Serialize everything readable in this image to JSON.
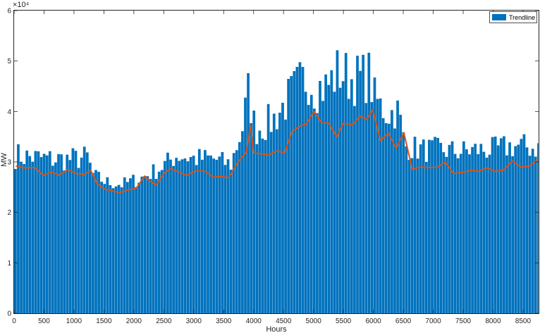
{
  "chart_data": {
    "type": "bar",
    "xlabel": "Hours",
    "ylabel": "MW",
    "exponent_label": "×10⁴",
    "xlim": [
      0,
      8760
    ],
    "ylim": [
      0,
      60000
    ],
    "xticks": [
      0,
      500,
      1000,
      1500,
      2000,
      2500,
      3000,
      3500,
      4000,
      4500,
      5000,
      5500,
      6000,
      6500,
      7000,
      7500,
      8000,
      8500
    ],
    "yticks": [
      0,
      10000,
      20000,
      30000,
      40000,
      50000,
      60000
    ],
    "ytick_labels": [
      "0",
      "1",
      "2",
      "3",
      "4",
      "5",
      "6"
    ],
    "grid": false,
    "legend_position": "top-right",
    "colors": {
      "bars": "#0072BD",
      "trend": "#D95319",
      "axes": "#262626"
    },
    "series": [
      {
        "name": "Trendline",
        "kind": "bar",
        "bin_hours": 48,
        "x_start": 0,
        "upper_envelope_x": [
          0,
          300,
          600,
          900,
          1200,
          1300,
          1500,
          1800,
          2100,
          2400,
          2700,
          3000,
          3300,
          3600,
          3800,
          3900,
          4000,
          4300,
          4500,
          4700,
          4900,
          5000,
          5200,
          5400,
          5600,
          5800,
          5900,
          6000,
          6200,
          6400,
          6500,
          6800,
          7100,
          7400,
          7700,
          8000,
          8300,
          8760
        ],
        "upper_envelope_y": [
          34000,
          33500,
          33000,
          33000,
          33500,
          29000,
          27500,
          27000,
          28500,
          30500,
          34000,
          33000,
          33000,
          31500,
          41000,
          50000,
          40000,
          42000,
          46000,
          50000,
          53000,
          50000,
          50000,
          54000,
          52000,
          52000,
          53000,
          47000,
          43000,
          44000,
          36000,
          35000,
          35000,
          34500,
          35000,
          35000,
          36000,
          35500
        ],
        "lower_envelope_x": [
          0,
          1300,
          1500,
          1800,
          2100,
          2400,
          2700,
          3600,
          3900,
          4000,
          4500,
          5000,
          6000,
          6400,
          6500,
          7000,
          8000,
          8760
        ],
        "lower_envelope_y": [
          22000,
          22000,
          21000,
          20500,
          21000,
          22000,
          22500,
          22500,
          25000,
          24000,
          26000,
          27000,
          28000,
          27000,
          23500,
          23500,
          23500,
          23500
        ]
      },
      {
        "name": "",
        "kind": "line",
        "x": [
          30,
          180,
          340,
          490,
          620,
          750,
          900,
          1040,
          1170,
          1280,
          1390,
          1520,
          1630,
          1760,
          1900,
          2040,
          2180,
          2260,
          2370,
          2510,
          2620,
          2750,
          2880,
          3030,
          3180,
          3320,
          3460,
          3590,
          3730,
          3880,
          3950,
          4000,
          4120,
          4260,
          4380,
          4520,
          4640,
          4790,
          4880,
          5010,
          5140,
          5250,
          5390,
          5500,
          5650,
          5780,
          5890,
          5990,
          6120,
          6250,
          6380,
          6510,
          6650,
          6780,
          6920,
          7060,
          7200,
          7340,
          7480,
          7620,
          7760,
          7900,
          8040,
          8180,
          8320,
          8460,
          8600,
          8730
        ],
        "y": [
          29200,
          28800,
          28900,
          27300,
          28000,
          27300,
          28500,
          27700,
          27500,
          28300,
          25600,
          24600,
          24300,
          23900,
          24400,
          24800,
          27200,
          26300,
          25400,
          27800,
          28700,
          28000,
          27300,
          28200,
          28200,
          27000,
          27100,
          26900,
          29800,
          32000,
          37200,
          31800,
          31600,
          31400,
          32200,
          31800,
          36000,
          37200,
          37500,
          40000,
          37700,
          37700,
          35000,
          37700,
          37300,
          39100,
          38400,
          40300,
          34200,
          35700,
          32700,
          35800,
          28500,
          29000,
          28900,
          28900,
          30000,
          27700,
          27900,
          28300,
          28200,
          28800,
          28100,
          28400,
          30200,
          29000,
          29100,
          30300
        ]
      }
    ]
  }
}
